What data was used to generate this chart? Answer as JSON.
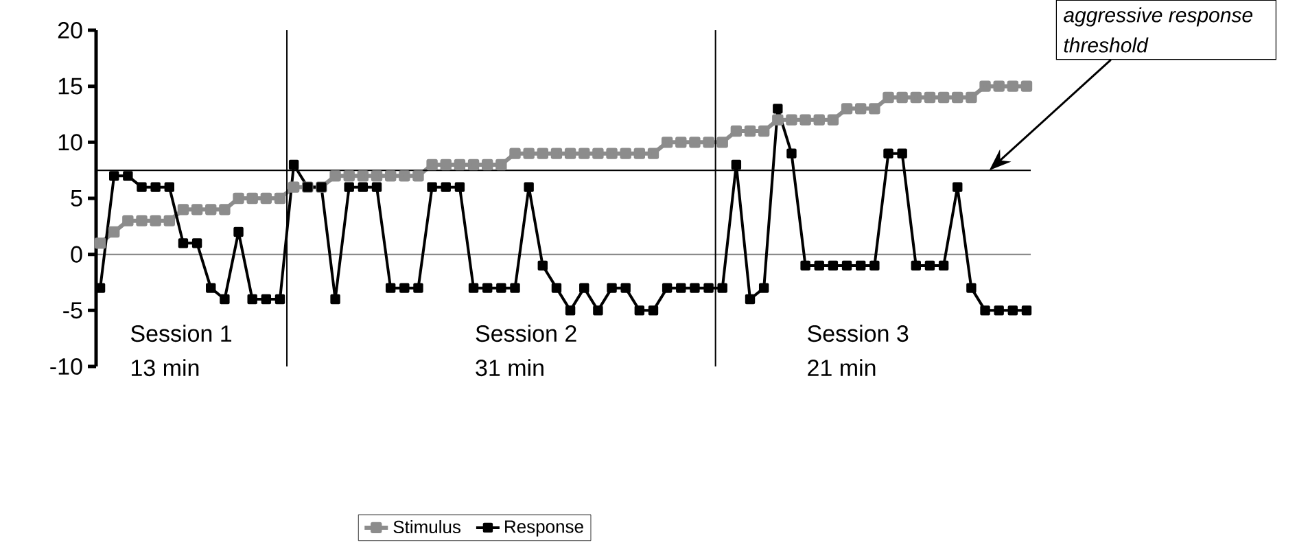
{
  "chart_data": {
    "type": "line",
    "categories": [
      null,
      null,
      null,
      null,
      null,
      null,
      null,
      null,
      null,
      null,
      null,
      null,
      null,
      null,
      null,
      null,
      null,
      null,
      null,
      null,
      null,
      null,
      null,
      null,
      null,
      null,
      null,
      null,
      null,
      null,
      null,
      null,
      null,
      null,
      null,
      null,
      null,
      null,
      null,
      null,
      null,
      null,
      null,
      null,
      null,
      null,
      null,
      null,
      null,
      null,
      null,
      null,
      null,
      null,
      null,
      null,
      null,
      null,
      null,
      null,
      null,
      null,
      null,
      null,
      null,
      null,
      null,
      null
    ],
    "series": [
      {
        "name": "Stimulus",
        "color": "#8c8c8c",
        "values": [
          1,
          2,
          3,
          3,
          3,
          3,
          4,
          4,
          4,
          4,
          5,
          5,
          5,
          5,
          6,
          6,
          6,
          7,
          7,
          7,
          7,
          7,
          7,
          7,
          8,
          8,
          8,
          8,
          8,
          8,
          9,
          9,
          9,
          9,
          9,
          9,
          9,
          9,
          9,
          9,
          9,
          10,
          10,
          10,
          10,
          10,
          11,
          11,
          11,
          12,
          12,
          12,
          12,
          12,
          13,
          13,
          13,
          14,
          14,
          14,
          14,
          14,
          14,
          14,
          15,
          15,
          15,
          15
        ]
      },
      {
        "name": "Response",
        "color": "#000000",
        "values": [
          -3,
          7,
          7,
          6,
          6,
          6,
          1,
          1,
          -3,
          -4,
          2,
          -4,
          -4,
          -4,
          8,
          6,
          6,
          -4,
          6,
          6,
          6,
          -3,
          -3,
          -3,
          6,
          6,
          6,
          -3,
          -3,
          -3,
          -3,
          6,
          -1,
          -3,
          -5,
          -3,
          -5,
          -3,
          -3,
          -5,
          -5,
          -3,
          -3,
          -3,
          -3,
          -3,
          8,
          -4,
          -3,
          13,
          9,
          -1,
          -1,
          -1,
          -1,
          -1,
          -1,
          9,
          9,
          -1,
          -1,
          -1,
          6,
          -3,
          -5,
          -5,
          -5,
          -5
        ]
      }
    ],
    "ylim": [
      -10,
      20
    ],
    "yticks": [
      -10,
      -5,
      0,
      5,
      10,
      15,
      20
    ],
    "tick_labels": "y",
    "grid": false,
    "legend": "bottom",
    "marker": "square",
    "ref_lines": [
      {
        "axis": "y",
        "value": 7.5,
        "color": "#000000",
        "label": "aggressive response threshold"
      }
    ],
    "annotations": [
      "Session 1 13 min",
      "Session 2 31 min",
      "Session 3 21 min"
    ]
  }
}
